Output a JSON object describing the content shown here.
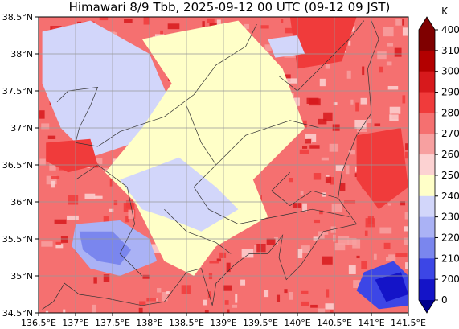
{
  "title": "Himawari 8/9 Tbb, 2025-09-12 00 UTC (09-12 09 JST)",
  "map": {
    "lon_range": [
      136.5,
      141.5
    ],
    "lat_range": [
      34.5,
      38.5
    ],
    "grid": true,
    "lon_ticks": [
      {
        "v": 136.5,
        "label": "136.5°E"
      },
      {
        "v": 137,
        "label": "137°E"
      },
      {
        "v": 137.5,
        "label": "137.5°E"
      },
      {
        "v": 138,
        "label": "138°E"
      },
      {
        "v": 138.5,
        "label": "138.5°E"
      },
      {
        "v": 139,
        "label": "139°E"
      },
      {
        "v": 139.5,
        "label": "139.5°E"
      },
      {
        "v": 140,
        "label": "140°E"
      },
      {
        "v": 140.5,
        "label": "140.5°E"
      },
      {
        "v": 141,
        "label": "141°E"
      },
      {
        "v": 141.5,
        "label": "141.5°E"
      }
    ],
    "lat_ticks": [
      {
        "v": 38.5,
        "label": "38.5°N"
      },
      {
        "v": 38,
        "label": "38°N"
      },
      {
        "v": 37.5,
        "label": "37.5°N"
      },
      {
        "v": 37,
        "label": "37°N"
      },
      {
        "v": 36.5,
        "label": "36.5°N"
      },
      {
        "v": 36,
        "label": "36°N"
      },
      {
        "v": 35.5,
        "label": "35.5°N"
      },
      {
        "v": 35,
        "label": "35°N"
      },
      {
        "v": 34.5,
        "label": "34.5°N"
      }
    ]
  },
  "colorbar": {
    "unit": "K",
    "levels": [
      {
        "label": "400",
        "value": 400,
        "color": "#7f0000"
      },
      {
        "label": "310",
        "value": 310,
        "color": "#b30000"
      },
      {
        "label": "300",
        "value": 300,
        "color": "#d7191c"
      },
      {
        "label": "290",
        "value": 290,
        "color": "#f03b3b"
      },
      {
        "label": "280",
        "value": 280,
        "color": "#f57070"
      },
      {
        "label": "270",
        "value": 270,
        "color": "#f7a0a0"
      },
      {
        "label": "260",
        "value": 260,
        "color": "#fcd2d2"
      },
      {
        "label": "250",
        "value": 250,
        "color": "#ffffc8"
      },
      {
        "label": "240",
        "value": 240,
        "color": "#d2d6fa"
      },
      {
        "label": "230",
        "value": 230,
        "color": "#aab2f5"
      },
      {
        "label": "220",
        "value": 220,
        "color": "#7a86ee"
      },
      {
        "label": "210",
        "value": 210,
        "color": "#3c46e6"
      },
      {
        "label": "200",
        "value": 200,
        "color": "#1414c8"
      },
      {
        "label": "0",
        "value": 0,
        "color": "#00008c"
      }
    ]
  },
  "regions": [
    {
      "name": "cold-cloud-west",
      "level": 230,
      "points": [
        [
          136.6,
          37.95
        ],
        [
          137.2,
          38.3
        ],
        [
          137.6,
          38.1
        ],
        [
          137.9,
          37.7
        ],
        [
          137.6,
          37.2
        ],
        [
          137.2,
          36.9
        ],
        [
          137.0,
          37.3
        ],
        [
          136.7,
          37.5
        ]
      ]
    },
    {
      "name": "cold-cloud-west-core",
      "level": 240,
      "points": [
        [
          136.55,
          38.3
        ],
        [
          137.2,
          38.45
        ],
        [
          138.0,
          38.0
        ],
        [
          138.3,
          37.3
        ],
        [
          137.8,
          36.8
        ],
        [
          137.2,
          36.6
        ],
        [
          136.8,
          37.0
        ],
        [
          136.55,
          37.6
        ]
      ]
    },
    {
      "name": "central-cloud",
      "level": 250,
      "points": [
        [
          137.9,
          38.2
        ],
        [
          139.2,
          38.45
        ],
        [
          139.8,
          37.8
        ],
        [
          140.1,
          37.0
        ],
        [
          139.4,
          36.3
        ],
        [
          139.6,
          35.8
        ],
        [
          138.9,
          35.4
        ],
        [
          138.6,
          35.0
        ],
        [
          138.2,
          35.2
        ],
        [
          137.8,
          36.0
        ],
        [
          137.4,
          36.4
        ],
        [
          137.9,
          37.0
        ],
        [
          138.3,
          37.6
        ]
      ]
    },
    {
      "name": "cloud-band-240",
      "level": 240,
      "points": [
        [
          137.6,
          36.3
        ],
        [
          138.4,
          36.6
        ],
        [
          138.9,
          36.2
        ],
        [
          139.2,
          35.9
        ],
        [
          138.7,
          35.6
        ],
        [
          138.2,
          35.8
        ],
        [
          137.9,
          35.9
        ]
      ]
    },
    {
      "name": "pocket-230",
      "level": 230,
      "points": [
        [
          137.0,
          35.7
        ],
        [
          137.6,
          35.75
        ],
        [
          138.0,
          35.5
        ],
        [
          138.1,
          35.2
        ],
        [
          137.6,
          35.0
        ],
        [
          137.2,
          35.1
        ],
        [
          136.95,
          35.4
        ]
      ]
    },
    {
      "name": "pocket-220",
      "level": 220,
      "points": [
        [
          137.05,
          35.6
        ],
        [
          137.5,
          35.6
        ],
        [
          137.75,
          35.35
        ],
        [
          137.6,
          35.15
        ],
        [
          137.3,
          35.2
        ],
        [
          137.1,
          35.35
        ]
      ]
    },
    {
      "name": "east-cold",
      "level": 210,
      "points": [
        [
          140.9,
          35.05
        ],
        [
          141.3,
          35.2
        ],
        [
          141.5,
          35.0
        ],
        [
          141.5,
          34.6
        ],
        [
          141.1,
          34.55
        ],
        [
          140.8,
          34.8
        ]
      ]
    },
    {
      "name": "east-cold-core",
      "level": 200,
      "points": [
        [
          141.05,
          34.95
        ],
        [
          141.4,
          35.05
        ],
        [
          141.5,
          34.75
        ],
        [
          141.2,
          34.65
        ]
      ]
    },
    {
      "name": "warm-patch-nw",
      "level": 290,
      "points": [
        [
          136.6,
          36.8
        ],
        [
          137.2,
          36.85
        ],
        [
          137.3,
          36.5
        ],
        [
          136.9,
          36.4
        ],
        [
          136.6,
          36.55
        ]
      ]
    },
    {
      "name": "warm-patch-e",
      "level": 290,
      "points": [
        [
          140.8,
          36.9
        ],
        [
          141.4,
          37.0
        ],
        [
          141.5,
          36.2
        ],
        [
          141.1,
          35.9
        ],
        [
          140.8,
          36.3
        ]
      ]
    },
    {
      "name": "warm-patch-n",
      "level": 290,
      "points": [
        [
          139.9,
          38.5
        ],
        [
          140.8,
          38.5
        ],
        [
          140.6,
          37.9
        ],
        [
          140.0,
          37.8
        ]
      ]
    },
    {
      "name": "cool-pocket-n",
      "level": 240,
      "points": [
        [
          139.6,
          38.2
        ],
        [
          140.0,
          38.25
        ],
        [
          140.1,
          38.0
        ],
        [
          139.7,
          37.95
        ]
      ]
    }
  ],
  "boundaries": [
    {
      "name": "honshu-coast-north",
      "points": [
        [
          136.75,
          37.35
        ],
        [
          136.9,
          37.5
        ],
        [
          137.3,
          37.55
        ],
        [
          137.2,
          37.3
        ],
        [
          137.05,
          37.0
        ],
        [
          137.0,
          36.8
        ],
        [
          137.3,
          36.75
        ],
        [
          137.6,
          36.95
        ],
        [
          138.2,
          37.15
        ],
        [
          138.6,
          37.45
        ],
        [
          138.9,
          37.85
        ],
        [
          139.3,
          38.1
        ],
        [
          139.45,
          38.4
        ]
      ]
    },
    {
      "name": "honshu-coast-east",
      "points": [
        [
          141.0,
          38.45
        ],
        [
          141.1,
          38.2
        ],
        [
          140.95,
          37.8
        ],
        [
          141.0,
          37.2
        ],
        [
          140.8,
          36.9
        ],
        [
          140.6,
          36.4
        ],
        [
          140.55,
          36.05
        ],
        [
          140.8,
          35.7
        ],
        [
          140.35,
          35.6
        ],
        [
          140.05,
          35.15
        ],
        [
          139.85,
          34.95
        ],
        [
          139.75,
          35.25
        ],
        [
          139.8,
          35.55
        ],
        [
          139.6,
          35.3
        ],
        [
          139.35,
          35.3
        ],
        [
          139.15,
          35.15
        ],
        [
          138.9,
          34.9
        ],
        [
          138.85,
          34.6
        ],
        [
          138.7,
          35.1
        ],
        [
          138.5,
          35.05
        ],
        [
          138.2,
          34.65
        ],
        [
          137.9,
          34.6
        ],
        [
          137.4,
          34.7
        ],
        [
          137.05,
          34.75
        ],
        [
          136.85,
          34.9
        ],
        [
          136.7,
          34.65
        ],
        [
          136.55,
          34.55
        ]
      ]
    },
    {
      "name": "prefecture-1",
      "points": [
        [
          137.0,
          36.3
        ],
        [
          137.3,
          36.5
        ],
        [
          137.7,
          36.2
        ],
        [
          137.8,
          35.7
        ],
        [
          137.6,
          35.3
        ],
        [
          137.9,
          35.0
        ]
      ]
    },
    {
      "name": "prefecture-2",
      "points": [
        [
          138.5,
          37.3
        ],
        [
          138.7,
          36.8
        ],
        [
          138.9,
          36.5
        ],
        [
          139.3,
          36.9
        ],
        [
          139.9,
          37.1
        ],
        [
          140.3,
          37.0
        ],
        [
          140.8,
          37.0
        ]
      ]
    },
    {
      "name": "prefecture-3",
      "points": [
        [
          138.9,
          36.5
        ],
        [
          138.6,
          36.2
        ],
        [
          138.8,
          35.9
        ],
        [
          139.2,
          35.7
        ],
        [
          139.7,
          35.8
        ],
        [
          140.2,
          35.9
        ],
        [
          140.7,
          35.8
        ]
      ]
    },
    {
      "name": "prefecture-4",
      "points": [
        [
          138.2,
          35.9
        ],
        [
          138.5,
          35.6
        ],
        [
          138.9,
          35.45
        ],
        [
          139.1,
          35.3
        ]
      ]
    },
    {
      "name": "prefecture-5",
      "points": [
        [
          139.75,
          37.7
        ],
        [
          140.0,
          37.5
        ],
        [
          140.4,
          37.9
        ],
        [
          140.7,
          38.2
        ],
        [
          140.9,
          38.45
        ]
      ]
    },
    {
      "name": "prefecture-6",
      "points": [
        [
          139.9,
          36.4
        ],
        [
          139.65,
          36.15
        ],
        [
          139.9,
          35.95
        ],
        [
          140.2,
          36.15
        ],
        [
          140.55,
          36.05
        ]
      ]
    }
  ]
}
